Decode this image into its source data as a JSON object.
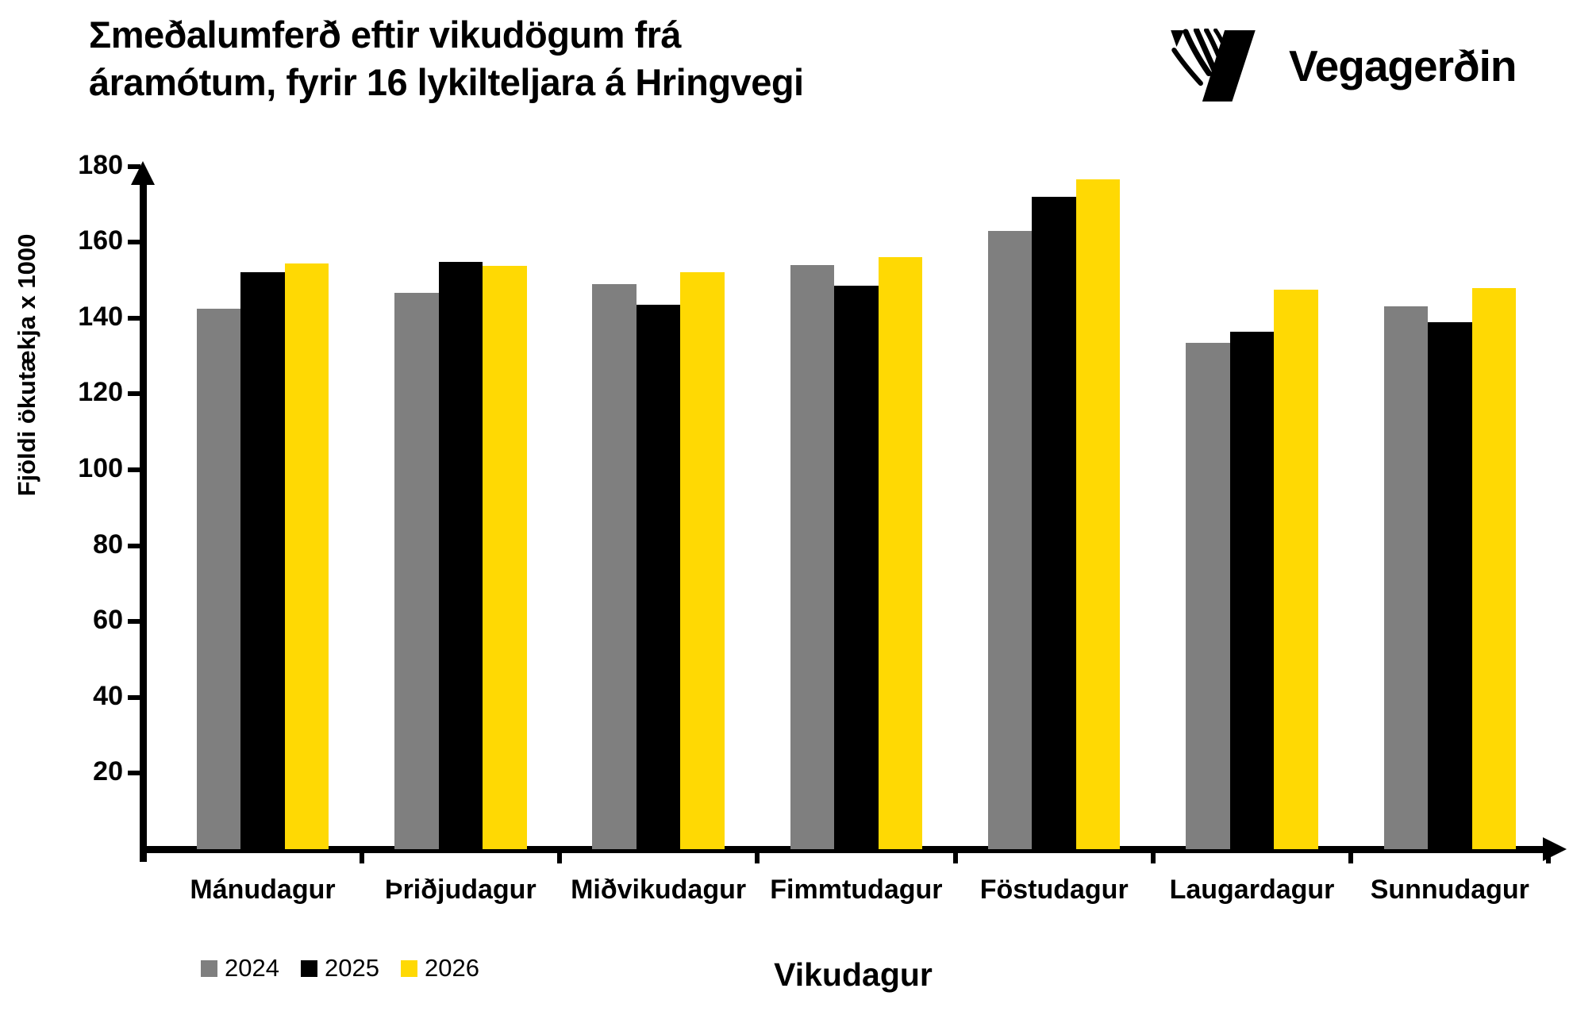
{
  "header": {
    "title_line1": "Σmeðalumferð eftir vikudögum frá",
    "title_line2": "áramótum, fyrir 16 lykilteljara á Hringvegi",
    "logo_text": "Vegagerðin"
  },
  "chart_data": {
    "type": "bar",
    "title": "Σmeðalumferð eftir vikudögum frá áramótum, fyrir 16 lykilteljara á Hringvegi",
    "xlabel": "Vikudagur",
    "ylabel": "Fjöldi ökutækja x 1000",
    "categories": [
      "Mánudagur",
      "Þriðjudagur",
      "Miðvikudagur",
      "Fimmtudagur",
      "Föstudagur",
      "Laugardagur",
      "Sunnudagur"
    ],
    "series": [
      {
        "name": "2024",
        "color": "#7f7f7f",
        "values": [
          142.5,
          146.7,
          149.0,
          154.0,
          163.0,
          133.5,
          143.0
        ]
      },
      {
        "name": "2025",
        "color": "#000000",
        "values": [
          152.0,
          154.8,
          143.5,
          148.5,
          172.0,
          136.3,
          139.0
        ]
      },
      {
        "name": "2026",
        "color": "#ffd903",
        "values": [
          154.3,
          153.8,
          152.0,
          156.0,
          176.5,
          147.5,
          148.0
        ]
      }
    ],
    "ylim": [
      0,
      180
    ],
    "yticks": [
      20,
      40,
      60,
      80,
      100,
      120,
      140,
      160,
      180
    ],
    "grid": false,
    "legend_position": "bottom-left"
  }
}
